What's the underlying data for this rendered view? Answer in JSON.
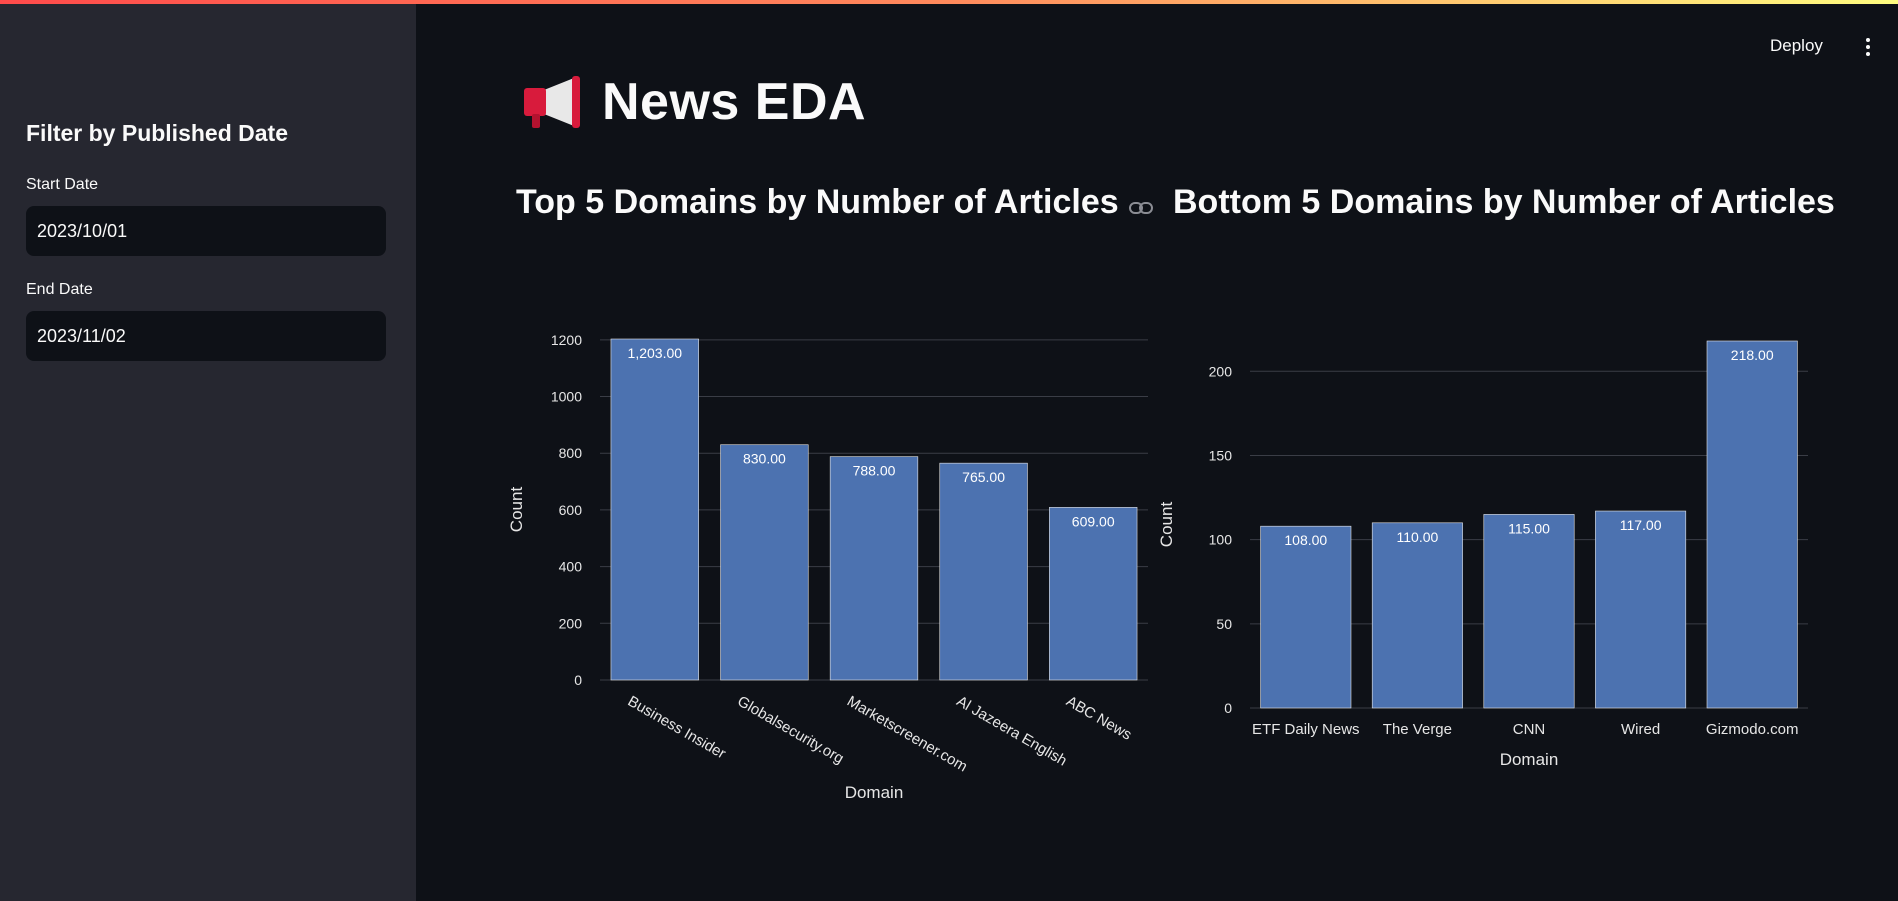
{
  "app": {
    "deploy_label": "Deploy",
    "menu_icon": "kebab-menu-icon"
  },
  "sidebar": {
    "title": "Filter by Published Date",
    "start_label": "Start Date",
    "start_value": "2023/10/01",
    "end_label": "End Date",
    "end_value": "2023/11/02"
  },
  "main": {
    "icon": "megaphone-icon",
    "title": "News EDA"
  },
  "colors": {
    "bar": "#4c72b0",
    "accent": "#ff4b4b",
    "background": "#0e1117",
    "sidebar": "#262730"
  },
  "chart_data": [
    {
      "type": "bar",
      "title": "Top 5 Domains by Number of Articles",
      "xlabel": "Domain",
      "ylabel": "Count",
      "categories": [
        "Business Insider",
        "Globalsecurity.org",
        "Marketscreener.com",
        "Al Jazeera English",
        "ABC News"
      ],
      "values": [
        1203,
        830,
        788,
        765,
        609
      ],
      "data_labels": [
        "1,203.00",
        "830.00",
        "788.00",
        "765.00",
        "609.00"
      ],
      "ylim": [
        0,
        1203
      ],
      "yticks": [
        0,
        200,
        400,
        600,
        800,
        1000,
        1200
      ],
      "grid": true,
      "rotated_xticks": true
    },
    {
      "type": "bar",
      "title": "Bottom 5 Domains by Number of Articles",
      "xlabel": "Domain",
      "ylabel": "Count",
      "categories": [
        "ETF Daily News",
        "The Verge",
        "CNN",
        "Wired",
        "Gizmodo.com"
      ],
      "values": [
        108,
        110,
        115,
        117,
        218
      ],
      "data_labels": [
        "108.00",
        "110.00",
        "115.00",
        "117.00",
        "218.00"
      ],
      "ylim": [
        0,
        218
      ],
      "yticks": [
        0,
        50,
        100,
        150,
        200
      ],
      "grid": true,
      "rotated_xticks": false
    }
  ]
}
